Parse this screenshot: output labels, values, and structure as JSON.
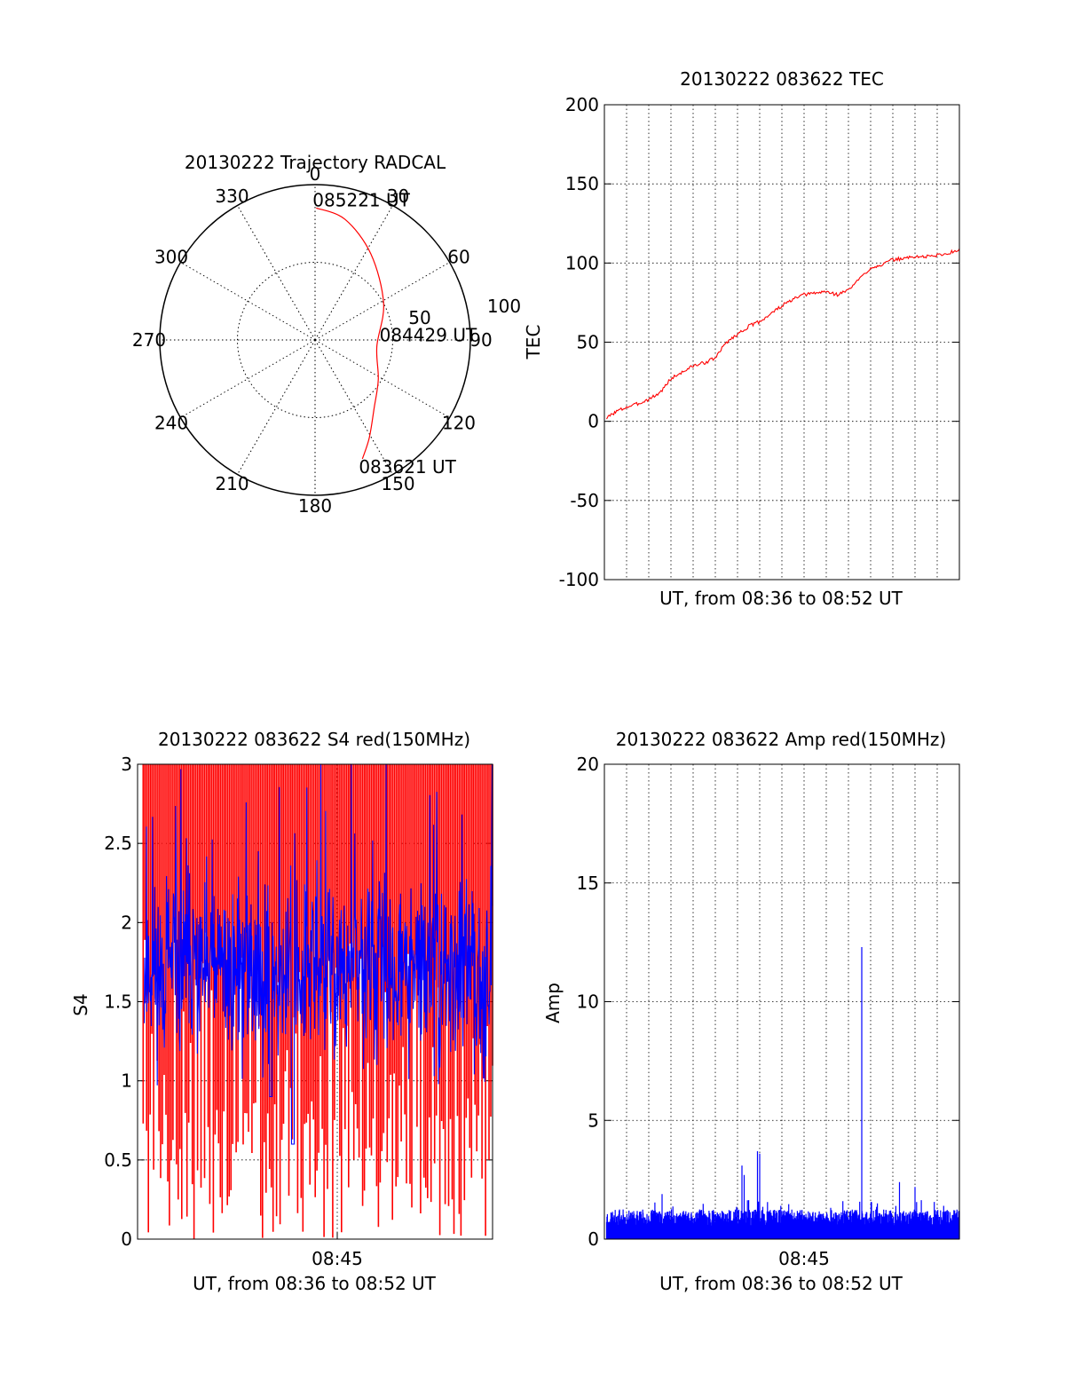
{
  "colors": {
    "red": "#ff0000",
    "blue": "#0000ff",
    "grid": "#000000"
  },
  "chart_data": [
    {
      "id": "polar",
      "type": "scatter",
      "title": "20130222 Trajectory RADCAL",
      "projection": "polar",
      "angle_labels": [
        {
          "deg": 0,
          "label": "0"
        },
        {
          "deg": 30,
          "label": "30"
        },
        {
          "deg": 60,
          "label": "60"
        },
        {
          "deg": 90,
          "label": "90"
        },
        {
          "deg": 120,
          "label": "120"
        },
        {
          "deg": 150,
          "label": "150"
        },
        {
          "deg": 180,
          "label": "180"
        },
        {
          "deg": 210,
          "label": "210"
        },
        {
          "deg": 240,
          "label": "240"
        },
        {
          "deg": 270,
          "label": "270"
        },
        {
          "deg": 300,
          "label": "300"
        },
        {
          "deg": 330,
          "label": "330"
        }
      ],
      "radial_labels": [
        "50",
        "100"
      ],
      "radial_range": [
        0,
        100
      ],
      "trajectory": {
        "color": "red",
        "points": [
          {
            "az": 158.3,
            "r": 82.4,
            "label": "083621 UT"
          },
          {
            "az": 151.0,
            "r": 72.0
          },
          {
            "az": 139.0,
            "r": 58.0
          },
          {
            "az": 122.0,
            "r": 48.0
          },
          {
            "az": 96.0,
            "r": 40.0,
            "label": "084429 UT"
          },
          {
            "az": 62.0,
            "r": 50.0
          },
          {
            "az": 33.0,
            "r": 66.0
          },
          {
            "az": 14.0,
            "r": 80.0
          },
          {
            "az": 0.5,
            "r": 85.0,
            "label": "085221 UT"
          }
        ]
      }
    },
    {
      "id": "tec",
      "type": "line",
      "title": "20130222 083622 TEC",
      "xlabel": "UT, from 08:36 to 08:52 UT",
      "ylabel": "TEC",
      "xlim": [
        0,
        16
      ],
      "ylim": [
        -100,
        200
      ],
      "yticks": [
        "-100",
        "-50",
        "0",
        "50",
        "100",
        "150",
        "200"
      ],
      "xgrid_count": 16,
      "grid": true,
      "series": [
        {
          "color": "red",
          "x": [
            0.1,
            0.5,
            1.0,
            1.5,
            2.0,
            2.5,
            3.0,
            3.5,
            4.0,
            4.5,
            5.0,
            5.5,
            6.0,
            6.5,
            7.0,
            7.5,
            8.0,
            8.5,
            9.0,
            9.5,
            10.0,
            10.5,
            11.0,
            11.5,
            12.0,
            12.5,
            13.0,
            13.5,
            14.0,
            14.5,
            15.0,
            15.5,
            16.0
          ],
          "y": [
            2,
            6,
            9,
            11,
            14,
            18,
            27,
            31,
            35,
            37,
            40,
            50,
            55,
            60,
            63,
            68,
            73,
            77,
            80,
            81,
            82,
            80,
            83,
            90,
            97,
            99,
            102,
            103,
            104,
            104,
            105,
            106,
            109
          ]
        }
      ]
    },
    {
      "id": "s4",
      "type": "line",
      "title": "20130222 083622 S4 red(150MHz)",
      "xlabel": "UT, from 08:36 to 08:52 UT",
      "ylabel": "S4",
      "xlim": [
        0,
        16
      ],
      "ylim": [
        0,
        3
      ],
      "yticks": [
        "0",
        "0.5",
        "1",
        "1.5",
        "2",
        "2.5",
        "3"
      ],
      "xtick": {
        "x": 9,
        "label": "08:45"
      },
      "grid": true,
      "series": [
        {
          "color": "red",
          "style": "spikes",
          "count": 200,
          "y_min": 0,
          "y_max": 3,
          "seed": 7
        },
        {
          "color": "blue",
          "style": "noise",
          "count": 800,
          "mean": 1.7,
          "spread": 0.38,
          "seed": 11,
          "dips": [
            {
              "x": 6.0,
              "y": 0.9
            },
            {
              "x": 7.0,
              "y": 0.6
            }
          ]
        }
      ]
    },
    {
      "id": "amp",
      "type": "line",
      "title": "20130222 083622 Amp red(150MHz)",
      "xlabel": "UT, from 08:36 to 08:52 UT",
      "ylabel": "Amp",
      "xlim": [
        0,
        16
      ],
      "ylim": [
        0,
        20
      ],
      "yticks": [
        "0",
        "5",
        "10",
        "15",
        "20"
      ],
      "xtick": {
        "x": 9,
        "label": "08:45"
      },
      "xgrid_count": 16,
      "grid": true,
      "series": [
        {
          "color": "blue",
          "style": "noise-floor",
          "count": 900,
          "base": 0.9,
          "spread": 0.35,
          "seed": 23,
          "spikes": [
            {
              "x": 6.2,
              "y": 3.1
            },
            {
              "x": 6.3,
              "y": 2.7
            },
            {
              "x": 6.9,
              "y": 3.7
            },
            {
              "x": 7.0,
              "y": 3.6
            },
            {
              "x": 11.6,
              "y": 12.3
            },
            {
              "x": 13.3,
              "y": 2.4
            },
            {
              "x": 14.0,
              "y": 2.2
            },
            {
              "x": 2.6,
              "y": 1.9
            }
          ]
        }
      ]
    }
  ]
}
